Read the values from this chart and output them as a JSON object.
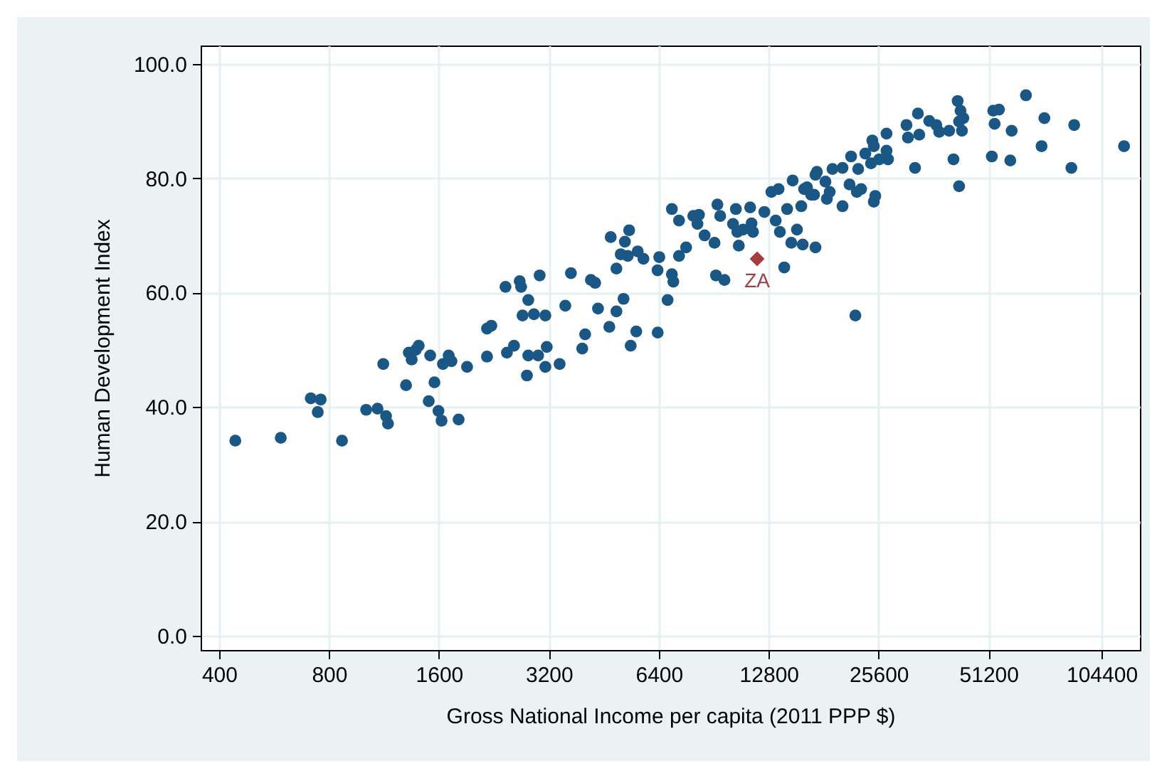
{
  "chart_data": {
    "type": "scatter",
    "xlabel": "Gross National Income per capita (2011 PPP $)",
    "ylabel": "Human Development Index",
    "log": "x",
    "grid": true,
    "marker": "circle",
    "legend": false,
    "xlim": [
      356,
      133000
    ],
    "ylim": [
      -2.5,
      103.2
    ],
    "xticks": [
      400,
      800,
      1600,
      3200,
      6400,
      12800,
      25600,
      51200,
      104400
    ],
    "yticks": [
      {
        "value": 0,
        "label": "0.0"
      },
      {
        "value": 20,
        "label": "20.0"
      },
      {
        "value": 40,
        "label": "40.0"
      },
      {
        "value": 60,
        "label": "60.0"
      },
      {
        "value": 80,
        "label": "80.0"
      },
      {
        "value": 100,
        "label": "100.0"
      }
    ],
    "series": [
      {
        "color": "#1a5785",
        "x": [
          443,
          590,
          868,
          713,
          759,
          745,
          1011,
          1086,
          1146,
          1160,
          1126,
          1300,
          1323,
          1383,
          1408,
          1347,
          1514,
          1555,
          1500,
          1595,
          1626,
          1811,
          1641,
          1701,
          1731,
          1910,
          2166,
          2226,
          2166,
          2456,
          2568,
          2434,
          2662,
          2686,
          2810,
          2710,
          2912,
          3130,
          2810,
          2990,
          3157,
          2786,
          3130,
          3019,
          6950,
          7270,
          7955,
          8243,
          8166,
          8544,
          9094,
          9261,
          9427,
          10406,
          11386,
          10221,
          10502,
          10886,
          11488,
          11590,
          12454,
          13018,
          13619,
          13376,
          14374,
          14886,
          16000,
          17037,
          17190,
          13734,
          15296,
          14758,
          15859,
          17190,
          10598,
          14118,
          9178,
          9683,
          4726,
          5309,
          5168,
          5034,
          5261,
          5603,
          5808,
          4899,
          6420,
          6350,
          6950,
          7014,
          7270,
          7603,
          6765,
          3677,
          4170,
          4285,
          3549,
          4362,
          4899,
          5123,
          4685,
          5552,
          6355,
          4022,
          3949,
          5360,
          3424,
          64819,
          42138,
          42906,
          43674,
          42522,
          43290,
          39936,
          52736,
          54682,
          53197,
          59238,
          72806,
          87859,
          120320,
          71526,
          52275,
          58726,
          86323,
          41037,
          42522,
          32205,
          32794,
          30515,
          30797,
          33075,
          35226,
          36838,
          37504,
          26906,
          24602,
          24832,
          26906,
          27162,
          23539,
          24397,
          25700,
          21517,
          22502,
          19136,
          20390,
          17344,
          21312,
          22310,
          22925,
          25062,
          24832,
          18304,
          18803,
          18470,
          20390,
          15718,
          16730,
          16294,
          22106
        ],
        "values": [
          34.1,
          34.6,
          34.1,
          41.5,
          41.3,
          39.1,
          39.5,
          39.7,
          38.4,
          37.1,
          47.5,
          43.8,
          49.5,
          50.0,
          50.7,
          48.3,
          49.0,
          44.3,
          41.0,
          39.3,
          37.6,
          37.8,
          47.5,
          49.0,
          48.0,
          47.0,
          53.7,
          54.2,
          48.8,
          49.5,
          50.7,
          61.0,
          62.0,
          61.0,
          58.7,
          56.0,
          56.2,
          56.0,
          49.0,
          49.0,
          50.5,
          45.5,
          47.0,
          63.0,
          74.6,
          72.6,
          73.4,
          73.6,
          72.0,
          70.0,
          68.7,
          75.4,
          73.4,
          74.6,
          74.9,
          72.0,
          70.6,
          71.0,
          72.1,
          70.6,
          74.1,
          77.6,
          78.1,
          72.6,
          74.6,
          79.6,
          78.1,
          77.1,
          80.6,
          70.6,
          71.0,
          68.7,
          68.4,
          67.9,
          68.2,
          64.4,
          63.0,
          62.2,
          69.7,
          70.9,
          68.9,
          66.7,
          66.4,
          67.2,
          65.9,
          64.2,
          66.2,
          63.9,
          63.2,
          61.9,
          66.4,
          67.9,
          58.7,
          63.4,
          62.2,
          61.7,
          57.7,
          57.2,
          56.7,
          58.9,
          54.0,
          53.2,
          53.0,
          52.7,
          50.2,
          50.7,
          47.5,
          94.5,
          93.5,
          91.8,
          90.5,
          89.9,
          88.3,
          88.3,
          91.8,
          92.0,
          89.5,
          88.3,
          90.5,
          89.3,
          85.6,
          85.6,
          83.8,
          83.1,
          81.8,
          83.3,
          78.6,
          81.8,
          91.3,
          89.3,
          87.1,
          87.6,
          90.0,
          89.3,
          88.1,
          87.8,
          86.6,
          85.6,
          84.8,
          83.3,
          84.3,
          82.6,
          83.3,
          83.8,
          81.6,
          81.6,
          81.8,
          81.1,
          78.9,
          77.6,
          78.1,
          76.9,
          75.9,
          79.4,
          77.6,
          76.4,
          75.1,
          75.1,
          77.1,
          78.4,
          56.0
        ]
      },
      {
        "name": "ZA",
        "color": "#a33d42",
        "marker": "diamond",
        "x": [
          11898
        ],
        "values": [
          65.9
        ]
      }
    ]
  }
}
